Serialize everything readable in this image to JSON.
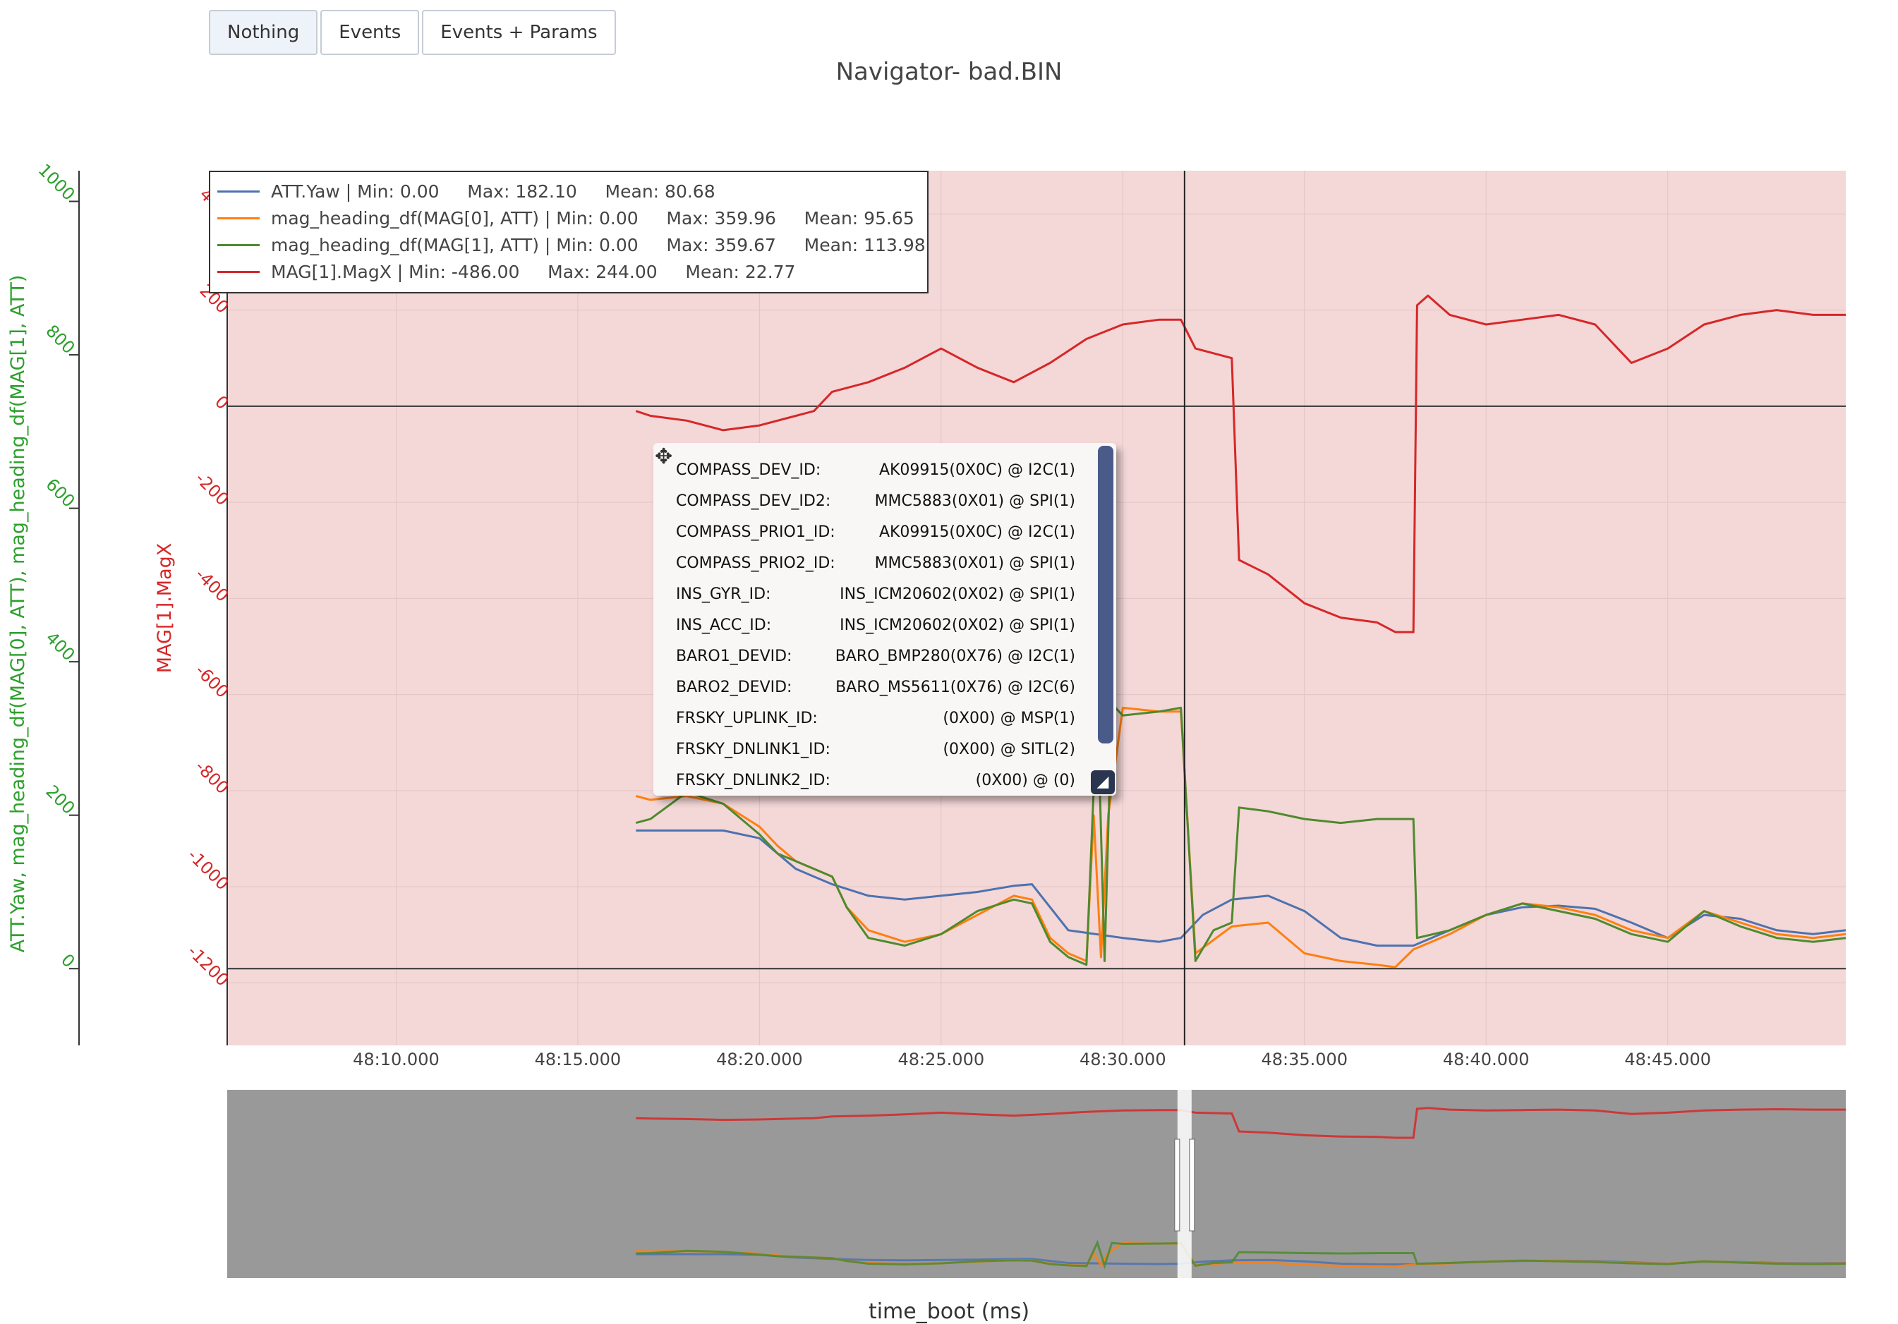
{
  "buttons": [
    {
      "label": "Nothing",
      "active": true
    },
    {
      "label": "Events",
      "active": false
    },
    {
      "label": "Events + Params",
      "active": false
    }
  ],
  "chart_data": {
    "type": "line",
    "title": "Navigator- bad.BIN",
    "xlabel": "time_boot (ms)",
    "x_ticks": [
      "48:10.000",
      "48:15.000",
      "48:20.000",
      "48:25.000",
      "48:30.000",
      "48:35.000",
      "48:40.000",
      "48:45.000"
    ],
    "x_tick_values": [
      10,
      15,
      20,
      25,
      30,
      35,
      40,
      45
    ],
    "xlim": [
      5.35,
      49.9
    ],
    "y_left": {
      "label": "ATT.Yaw, mag_heading_df(MAG[0], ATT), mag_heading_df(MAG[1], ATT)",
      "color": "#2ca02c",
      "ticks": [
        0,
        200,
        400,
        600,
        800,
        1000
      ],
      "range": [
        -100,
        1040
      ]
    },
    "y_right": {
      "label": "MAG[1].MagX",
      "color": "#d62728",
      "ticks": [
        -1200,
        -1000,
        -800,
        -600,
        -400,
        -200,
        0,
        200,
        400
      ],
      "range": [
        -1330,
        490
      ]
    },
    "background": "#f4d7d7",
    "crosshair_x": 31.7,
    "series": [
      {
        "name": "ATT.Yaw",
        "stats": " | Min: 0.00     Max: 182.10     Mean: 80.68",
        "color": "#4c72b0",
        "axis": "left",
        "points": [
          [
            16.6,
            180
          ],
          [
            19,
            180
          ],
          [
            20,
            170
          ],
          [
            21,
            130
          ],
          [
            22,
            110
          ],
          [
            23,
            95
          ],
          [
            24,
            90
          ],
          [
            25,
            95
          ],
          [
            26,
            100
          ],
          [
            27,
            108
          ],
          [
            27.5,
            110
          ],
          [
            28,
            80
          ],
          [
            28.5,
            50
          ],
          [
            30,
            40
          ],
          [
            31,
            35
          ],
          [
            31.6,
            40
          ],
          [
            32.2,
            70
          ],
          [
            33,
            90
          ],
          [
            34,
            95
          ],
          [
            35,
            75
          ],
          [
            36,
            40
          ],
          [
            37,
            30
          ],
          [
            38,
            30
          ],
          [
            39,
            50
          ],
          [
            40,
            70
          ],
          [
            41,
            80
          ],
          [
            42,
            82
          ],
          [
            43,
            78
          ],
          [
            44,
            60
          ],
          [
            45,
            40
          ],
          [
            46,
            70
          ],
          [
            47,
            65
          ],
          [
            48,
            50
          ],
          [
            49,
            45
          ],
          [
            49.9,
            50
          ]
        ]
      },
      {
        "name": "mag_heading_df(MAG[0], ATT)",
        "stats": " | Min: 0.00     Max: 359.96     Mean: 95.65",
        "color": "#ff7f0e",
        "axis": "left",
        "points": [
          [
            16.6,
            225
          ],
          [
            17,
            220
          ],
          [
            18,
            225
          ],
          [
            19,
            215
          ],
          [
            20,
            185
          ],
          [
            20.5,
            160
          ],
          [
            21,
            140
          ],
          [
            22,
            120
          ],
          [
            22.4,
            80
          ],
          [
            23,
            50
          ],
          [
            24,
            35
          ],
          [
            25,
            45
          ],
          [
            26,
            70
          ],
          [
            27,
            95
          ],
          [
            27.5,
            90
          ],
          [
            28,
            40
          ],
          [
            28.5,
            20
          ],
          [
            29,
            10
          ],
          [
            29.2,
            200
          ],
          [
            29.4,
            15
          ],
          [
            29.6,
            200
          ],
          [
            30,
            340
          ],
          [
            31,
            335
          ],
          [
            31.6,
            335
          ],
          [
            32,
            20
          ],
          [
            33,
            55
          ],
          [
            34,
            60
          ],
          [
            35,
            20
          ],
          [
            36,
            10
          ],
          [
            37,
            5
          ],
          [
            37.5,
            2
          ],
          [
            38,
            25
          ],
          [
            39,
            45
          ],
          [
            40,
            70
          ],
          [
            41,
            85
          ],
          [
            42,
            80
          ],
          [
            43,
            70
          ],
          [
            44,
            50
          ],
          [
            45,
            40
          ],
          [
            46,
            75
          ],
          [
            47,
            60
          ],
          [
            48,
            45
          ],
          [
            49,
            40
          ],
          [
            49.9,
            45
          ]
        ]
      },
      {
        "name": "mag_heading_df(MAG[1], ATT)",
        "stats": " | Min: 0.00     Max: 359.67     Mean: 113.98",
        "color": "#4e8a2e",
        "axis": "left",
        "points": [
          [
            16.6,
            190
          ],
          [
            17,
            195
          ],
          [
            18,
            230
          ],
          [
            19,
            215
          ],
          [
            20,
            175
          ],
          [
            20.5,
            150
          ],
          [
            21,
            140
          ],
          [
            22,
            120
          ],
          [
            22.4,
            80
          ],
          [
            23,
            40
          ],
          [
            24,
            30
          ],
          [
            25,
            45
          ],
          [
            26,
            75
          ],
          [
            27,
            90
          ],
          [
            27.5,
            85
          ],
          [
            28,
            35
          ],
          [
            28.5,
            15
          ],
          [
            29,
            5
          ],
          [
            29.3,
            350
          ],
          [
            29.5,
            10
          ],
          [
            29.7,
            345
          ],
          [
            30,
            330
          ],
          [
            31,
            335
          ],
          [
            31.6,
            340
          ],
          [
            32,
            10
          ],
          [
            32.5,
            50
          ],
          [
            33,
            60
          ],
          [
            33.2,
            210
          ],
          [
            34,
            205
          ],
          [
            35,
            195
          ],
          [
            36,
            190
          ],
          [
            37,
            195
          ],
          [
            38,
            195
          ],
          [
            38.1,
            40
          ],
          [
            39,
            50
          ],
          [
            40,
            70
          ],
          [
            41,
            85
          ],
          [
            42,
            75
          ],
          [
            43,
            65
          ],
          [
            44,
            45
          ],
          [
            45,
            35
          ],
          [
            46,
            75
          ],
          [
            47,
            55
          ],
          [
            48,
            40
          ],
          [
            49,
            35
          ],
          [
            49.9,
            40
          ]
        ]
      },
      {
        "name": "MAG[1].MagX",
        "stats": " | Min: -486.00     Max: 244.00     Mean: 22.77",
        "color": "#d62728",
        "axis": "right",
        "points": [
          [
            16.6,
            -10
          ],
          [
            17,
            -20
          ],
          [
            18,
            -30
          ],
          [
            19,
            -50
          ],
          [
            20,
            -40
          ],
          [
            21,
            -20
          ],
          [
            21.5,
            -10
          ],
          [
            22,
            30
          ],
          [
            23,
            50
          ],
          [
            24,
            80
          ],
          [
            25,
            120
          ],
          [
            26,
            80
          ],
          [
            27,
            50
          ],
          [
            28,
            90
          ],
          [
            29,
            140
          ],
          [
            30,
            170
          ],
          [
            31,
            180
          ],
          [
            31.6,
            180
          ],
          [
            32,
            120
          ],
          [
            33,
            100
          ],
          [
            33.2,
            -320
          ],
          [
            34,
            -350
          ],
          [
            35,
            -410
          ],
          [
            36,
            -440
          ],
          [
            37,
            -450
          ],
          [
            37.5,
            -470
          ],
          [
            38,
            -470
          ],
          [
            38.1,
            210
          ],
          [
            38.4,
            230
          ],
          [
            39,
            190
          ],
          [
            40,
            170
          ],
          [
            41,
            180
          ],
          [
            42,
            190
          ],
          [
            43,
            170
          ],
          [
            44,
            90
          ],
          [
            45,
            120
          ],
          [
            46,
            170
          ],
          [
            47,
            190
          ],
          [
            48,
            200
          ],
          [
            49,
            190
          ],
          [
            49.9,
            190
          ]
        ]
      }
    ]
  },
  "params": [
    {
      "key": "COMPASS_DEV_ID:",
      "value": "AK09915(0X0C) @ I2C(1)"
    },
    {
      "key": "COMPASS_DEV_ID2:",
      "value": "MMC5883(0X01) @ SPI(1)"
    },
    {
      "key": "COMPASS_PRIO1_ID:",
      "value": "AK09915(0X0C) @ I2C(1)"
    },
    {
      "key": "COMPASS_PRIO2_ID:",
      "value": "MMC5883(0X01) @ SPI(1)"
    },
    {
      "key": "INS_GYR_ID:",
      "value": "INS_ICM20602(0X02) @ SPI(1)"
    },
    {
      "key": "INS_ACC_ID:",
      "value": "INS_ICM20602(0X02) @ SPI(1)"
    },
    {
      "key": "BARO1_DEVID:",
      "value": "BARO_BMP280(0X76) @ I2C(1)"
    },
    {
      "key": "BARO2_DEVID:",
      "value": "BARO_MS5611(0X76) @ I2C(6)"
    },
    {
      "key": "FRSKY_UPLINK_ID:",
      "value": "(0X00) @ MSP(1)"
    },
    {
      "key": "FRSKY_DNLINK1_ID:",
      "value": "(0X00) @ SITL(2)"
    },
    {
      "key": "FRSKY_DNLINK2_ID:",
      "value": "(0X00) @ (0)"
    }
  ]
}
